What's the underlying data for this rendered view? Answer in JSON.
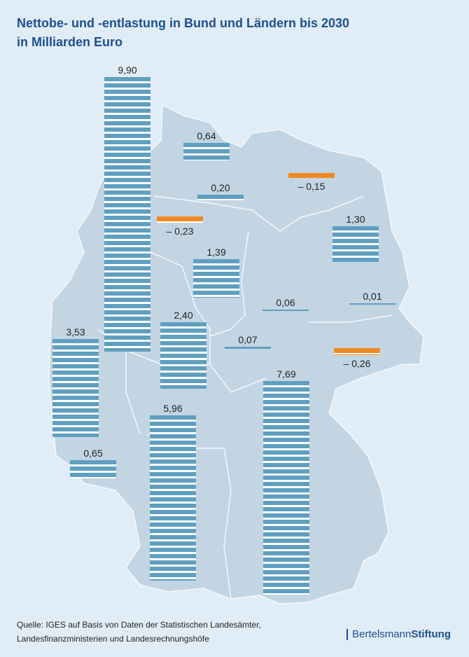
{
  "title_line1": "Nettobe- und -entlastung in Bund und Ländern bis 2030",
  "title_line2": "in Milliarden Euro",
  "source_line1": "Quelle: IGES auf Basis von Daten der Statistischen Landesämter,",
  "source_line2": "Landesfinanzministerien und Landesrechnungshöfe",
  "logo_regular": "Bertelsmann",
  "logo_bold": "Stiftung",
  "colors": {
    "positive": "#5f9fc0",
    "negative": "#f08a24",
    "map": "#c3d5e3",
    "background": "#e1edf6",
    "title": "#1d4f91"
  },
  "chart_data": {
    "type": "bar",
    "title": "Nettobe- und -entlastung in Bund und Ländern bis 2030",
    "subtitle": "in Milliarden Euro",
    "values": [
      9.9,
      0.64,
      0.2,
      -0.15,
      -0.23,
      1.3,
      1.39,
      0.06,
      0.01,
      2.4,
      3.53,
      0.07,
      -0.26,
      7.69,
      5.96,
      0.65
    ],
    "labels": [
      "9,90",
      "0,64",
      "0,20",
      "– 0,15",
      "– 0,23",
      "1,30",
      "1,39",
      "0,06",
      "0,01",
      "2,40",
      "3,53",
      "0,07",
      "– 0,26",
      "7,69",
      "5,96",
      "0,65"
    ]
  }
}
